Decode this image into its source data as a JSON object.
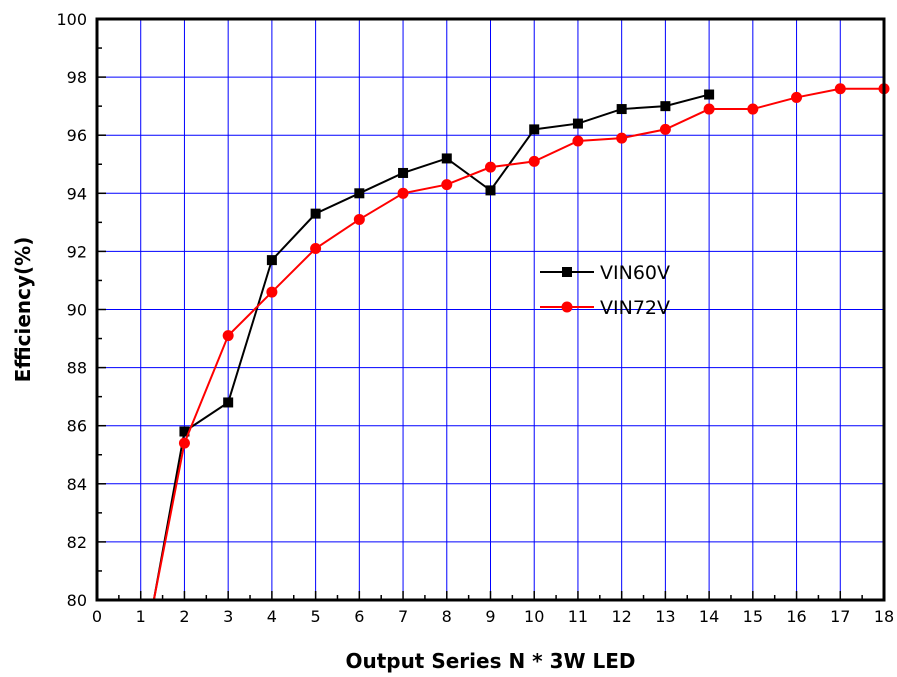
{
  "chart_data": {
    "type": "line",
    "title": "",
    "xlabel": "Output Series N * 3W LED",
    "ylabel": "Efficiency(%)",
    "xlim": [
      0,
      18
    ],
    "ylim": [
      80,
      100
    ],
    "x_ticks": [
      0,
      1,
      2,
      3,
      4,
      5,
      6,
      7,
      8,
      9,
      10,
      11,
      12,
      13,
      14,
      15,
      16,
      17,
      18
    ],
    "y_ticks": [
      80,
      82,
      84,
      86,
      88,
      90,
      92,
      94,
      96,
      98,
      100
    ],
    "grid": true,
    "grid_color": "#0000ff",
    "legend_position": "center-right",
    "series": [
      {
        "name": "VIN60V",
        "color": "#000000",
        "marker": "square",
        "points": [
          [
            1.3,
            80.0
          ],
          [
            2,
            85.8
          ],
          [
            3,
            86.8
          ],
          [
            4,
            91.7
          ],
          [
            5,
            93.3
          ],
          [
            6,
            94.0
          ],
          [
            7,
            94.7
          ],
          [
            8,
            95.2
          ],
          [
            9,
            94.1
          ],
          [
            10,
            96.2
          ],
          [
            11,
            96.4
          ],
          [
            12,
            96.9
          ],
          [
            13,
            97.0
          ],
          [
            14,
            97.4
          ]
        ],
        "marker_start_index": 1
      },
      {
        "name": "VIN72V",
        "color": "#ff0000",
        "marker": "circle",
        "points": [
          [
            1.3,
            80.0
          ],
          [
            2,
            85.4
          ],
          [
            3,
            89.1
          ],
          [
            4,
            90.6
          ],
          [
            5,
            92.1
          ],
          [
            6,
            93.1
          ],
          [
            7,
            94.0
          ],
          [
            8,
            94.3
          ],
          [
            9,
            94.9
          ],
          [
            10,
            95.1
          ],
          [
            11,
            95.8
          ],
          [
            12,
            95.9
          ],
          [
            13,
            96.2
          ],
          [
            14,
            96.9
          ],
          [
            15,
            96.9
          ],
          [
            16,
            97.3
          ],
          [
            17,
            97.6
          ],
          [
            18,
            97.6
          ]
        ],
        "marker_start_index": 1
      }
    ]
  }
}
